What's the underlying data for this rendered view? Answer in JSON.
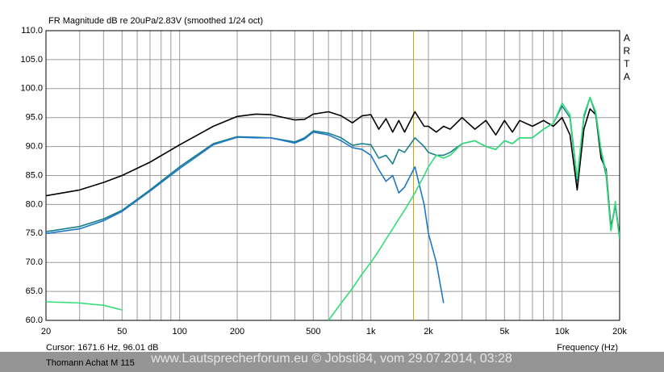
{
  "chart_data": {
    "type": "line",
    "title": "FR Magnitude dB re 20uPa/2.83V (smoothed 1/24 oct)",
    "logo": "ARTA",
    "x_label": "Frequency (Hz)",
    "cursor_text": "Cursor: 1671.6 Hz, 96.01 dB",
    "cursor_x": 1671.6,
    "cursor_color": "#c8a400",
    "device": "Thomann Achat M 115",
    "watermark": "www.Lautsprecherforum.eu © Jobsti84, vom 29.07.2014, 03:28",
    "x_log": true,
    "grid": true,
    "xlim": [
      20,
      20000
    ],
    "ylim": [
      60,
      110
    ],
    "xticks": [
      20,
      50,
      100,
      200,
      500,
      {
        "value": 1000,
        "label": "1k"
      },
      {
        "value": 2000,
        "label": "2k"
      },
      {
        "value": 5000,
        "label": "5k"
      },
      {
        "value": 10000,
        "label": "10k"
      },
      {
        "value": 20000,
        "label": "20k"
      }
    ],
    "yticks": [
      {
        "value": 60,
        "label": "60.0"
      },
      {
        "value": 65,
        "label": "65.0"
      },
      {
        "value": 70,
        "label": "70.0"
      },
      {
        "value": 75,
        "label": "75.0"
      },
      {
        "value": 80,
        "label": "80.0"
      },
      {
        "value": 85,
        "label": "85.0"
      },
      {
        "value": 90,
        "label": "90.0"
      },
      {
        "value": 95,
        "label": "95.0"
      },
      {
        "value": 100,
        "label": "100.0"
      },
      {
        "value": 105,
        "label": "105.0"
      },
      {
        "value": 110,
        "label": "110.0"
      }
    ],
    "x": [
      20,
      30,
      40,
      50,
      70,
      100,
      150,
      200,
      250,
      300,
      400,
      450,
      500,
      600,
      700,
      800,
      900,
      1000,
      1100,
      1200,
      1300,
      1400,
      1500,
      1700,
      1900,
      2000,
      2200,
      2400,
      2600,
      3000,
      3500,
      4000,
      4500,
      5000,
      5500,
      6000,
      7000,
      8000,
      9000,
      10000,
      11000,
      12000,
      13000,
      14000,
      15000,
      16000,
      17000,
      18000,
      19000,
      20000
    ],
    "series": [
      {
        "color": "#000000",
        "values": [
          81.5,
          82.5,
          83.8,
          85,
          87.3,
          90.3,
          93.5,
          95.2,
          95.6,
          95.5,
          94.6,
          94.7,
          95.6,
          96.0,
          95.3,
          94.1,
          95.3,
          95.5,
          93,
          94.8,
          92.5,
          94.5,
          92.5,
          96,
          93.5,
          93.5,
          92.5,
          93.5,
          93,
          95,
          93,
          94.5,
          92,
          94.5,
          92.5,
          94.5,
          93.5,
          94.5,
          93.5,
          95,
          92,
          82.5,
          93,
          96.5,
          95.5,
          88,
          86,
          76,
          80,
          74.5
        ]
      },
      {
        "color": "#1a7f8a",
        "values": [
          75.3,
          76.2,
          77.5,
          79,
          82.5,
          86.5,
          90.5,
          91.7,
          91.6,
          91.5,
          90.8,
          91.5,
          92.7,
          92.3,
          91.5,
          90.2,
          90.5,
          90.3,
          88,
          88.5,
          87,
          89.5,
          89,
          91.5,
          90,
          89,
          88.5,
          88.5,
          89,
          90.5,
          91,
          90,
          89.5,
          91,
          90.5,
          91.5,
          91.5,
          93,
          94,
          97,
          95,
          84,
          95,
          98.5,
          95.5,
          89,
          85,
          75.5,
          80,
          74
        ]
      },
      {
        "color": "#1e78c8",
        "values": [
          75,
          75.8,
          77.2,
          78.8,
          82.3,
          86.2,
          90.3,
          91.6,
          91.5,
          91.5,
          90.6,
          91.3,
          92.5,
          92,
          91,
          89.8,
          89.5,
          88.5,
          86,
          84,
          85,
          82,
          83,
          86.5,
          80,
          75,
          70,
          63,
          null,
          null,
          null,
          null,
          null,
          null,
          null,
          null,
          null,
          null,
          null,
          null,
          null,
          null,
          null,
          null,
          null,
          null,
          null,
          null,
          null,
          null
        ]
      },
      {
        "color": "#33dd77",
        "values": [
          63.2,
          63,
          62.6,
          61.8,
          null,
          null,
          null,
          null,
          null,
          null,
          null,
          null,
          null,
          60,
          63,
          65.5,
          68,
          70,
          72,
          74,
          75.8,
          77.5,
          79,
          82,
          85,
          86.5,
          88.5,
          88,
          88.5,
          90.5,
          91,
          90,
          89.5,
          91,
          90.5,
          91.5,
          91.5,
          93,
          94,
          97.5,
          95.5,
          84.5,
          95.5,
          98.5,
          96,
          89.5,
          85.5,
          75.5,
          80.5,
          74
        ]
      }
    ]
  }
}
